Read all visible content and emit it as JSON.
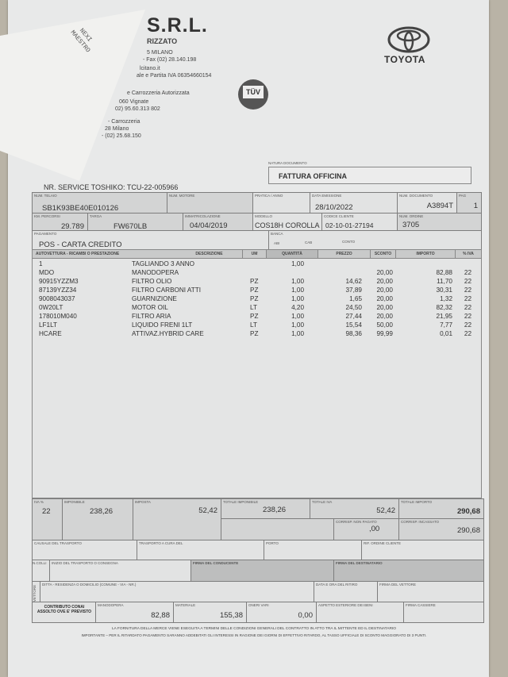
{
  "receipt": {
    "line1": "NEXI",
    "line2": "MAESTRO"
  },
  "company": {
    "name": "S.R.L.",
    "subtitle": "RIZZATO",
    "lines": [
      "5 MILANO",
      "- Fax (02) 28.140.198",
      "lcitano.it",
      "ale e Partita IVA 06354660154",
      "e Carrozzeria Autorizzata",
      "060 Vignate",
      "02) 95.60.313 802",
      "- Carrozzeria",
      "28 Milano",
      "- (02) 25.68.150"
    ]
  },
  "logos": {
    "tuv": "TÜV",
    "toyota": "TOYOTA"
  },
  "document_type": {
    "label": "NATURA DOCUMENTO",
    "value": "FATTURA OFFICINA"
  },
  "service_number": "NR. SERVICE TOSHIKO: TCU-22-005966",
  "info": {
    "num_telaio": {
      "label": "NUM. TELAIO",
      "value": "SB1K93BE40E010126"
    },
    "num_motore": {
      "label": "NUM. MOTORE",
      "value": ""
    },
    "pratica_anno": {
      "label": "PRATICA / ANNO",
      "value": ""
    },
    "data_emissione": {
      "label": "DATA EMISSIONE",
      "value": "28/10/2022"
    },
    "num_documento": {
      "label": "NUM. DOCUMENTO",
      "value": "A3894T"
    },
    "pag": {
      "label": "PAG",
      "value": "1"
    },
    "km_percorsi": {
      "label": "KM. PERCORSI",
      "value": "29.789"
    },
    "targa": {
      "label": "TARGA",
      "value": "FW670LB"
    },
    "immatricolazione": {
      "label": "IMMATRICOLAZIONE",
      "value": "04/04/2019"
    },
    "modello": {
      "label": "MODELLO",
      "value": "COS18H COROLLA"
    },
    "codice_cliente": {
      "label": "CODICE CLIENTE",
      "value": "02-10-01-27194"
    },
    "num_ordine": {
      "label": "NUM. ORDINE",
      "value": "3705"
    },
    "pagamento": {
      "label": "PAGAMENTO",
      "value": "POS - CARTA CREDITO"
    },
    "banca": {
      "label": "BANCA",
      "abi": "ABI",
      "cab": "CAB",
      "conto": "CONTO"
    }
  },
  "table": {
    "headers": {
      "code": "AUTOVETTURA - RICAMBI O PRESTAZIONE",
      "desc": "DESCRIZIONE",
      "um": "UM",
      "qty": "QUANTITÀ",
      "price": "PREZZO",
      "discount": "SCONTO",
      "amount": "IMPORTO",
      "vat": "% IVA"
    },
    "rows": [
      {
        "code": "1",
        "desc": "TAGLIANDO 3 ANNO",
        "um": "",
        "qty": "1,00",
        "price": "",
        "discount": "",
        "amount": "",
        "vat": ""
      },
      {
        "code": "MDO",
        "desc": "MANODOPERA",
        "um": "",
        "qty": "",
        "price": "",
        "discount": "20,00",
        "amount": "82,88",
        "vat": "22"
      },
      {
        "code": "90915YZZM3",
        "desc": "FILTRO OLIO",
        "um": "PZ",
        "qty": "1,00",
        "price": "14,62",
        "discount": "20,00",
        "amount": "11,70",
        "vat": "22"
      },
      {
        "code": "87139YZZ34",
        "desc": "FILTRO CARBONI ATTI",
        "um": "PZ",
        "qty": "1,00",
        "price": "37,89",
        "discount": "20,00",
        "amount": "30,31",
        "vat": "22"
      },
      {
        "code": "9008043037",
        "desc": "GUARNIZIONE",
        "um": "PZ",
        "qty": "1,00",
        "price": "1,65",
        "discount": "20,00",
        "amount": "1,32",
        "vat": "22"
      },
      {
        "code": "0W20LT",
        "desc": "MOTOR OIL",
        "um": "LT",
        "qty": "4,20",
        "price": "24,50",
        "discount": "20,00",
        "amount": "82,32",
        "vat": "22"
      },
      {
        "code": "178010M040",
        "desc": "FILTRO ARIA",
        "um": "PZ",
        "qty": "1,00",
        "price": "27,44",
        "discount": "20,00",
        "amount": "21,95",
        "vat": "22"
      },
      {
        "code": "LF1LT",
        "desc": "LIQUIDO FRENI 1LT",
        "um": "LT",
        "qty": "1,00",
        "price": "15,54",
        "discount": "50,00",
        "amount": "7,77",
        "vat": "22"
      },
      {
        "code": "HCARE",
        "desc": "ATTIVAZ.HYBRID CARE",
        "um": "PZ",
        "qty": "1,00",
        "price": "98,36",
        "discount": "99,99",
        "amount": "0,01",
        "vat": "22"
      }
    ]
  },
  "totals": {
    "iva_pct": {
      "label": "IVA %",
      "value": "22"
    },
    "imponibile": {
      "label": "IMPONIBILE",
      "value": "238,26"
    },
    "imposta": {
      "label": "IMPOSTA",
      "value": "52,42"
    },
    "totale_imponibile": {
      "label": "TOTALE IMPONIBILE",
      "value": "238,26"
    },
    "totale_iva": {
      "label": "TOTALE IVA",
      "value": "52,42"
    },
    "totale_importo": {
      "label": "TOTALE IMPORTO",
      "value": "290,68"
    },
    "corrisp_non_pagato": {
      "label": "CORRISP. NON PAGATO",
      "value": ",00"
    },
    "corrisp_incassato": {
      "label": "CORRISP. INCASSATO",
      "value": "290,68"
    }
  },
  "transport": {
    "causale": "CAUSALE DEL TRASPORTO",
    "a_cura": "TRASPORTO A CURA DEL",
    "porto": "PORTO",
    "rif_ordine": "RIF. ORDINE CLIENTE",
    "n_colli": "N.COLLI",
    "inizio": "INIZIO DEL TRASPORTO O CONSEGNA",
    "firma_conducente": "FIRMA DEL CONDUCENTE",
    "firma_destinatario": "FIRMA DEL DESTINATARIO",
    "vettore": "VETTORE",
    "ditta": "DITTA - RESIDENZA O DOMICILIO (COMUNE - VIA - NR.)",
    "data_ritiro": "DATA E ORA DEL RITIRO",
    "firma_vettore": "FIRMA DEL VETTORE"
  },
  "summary": {
    "contributo": "CONTRIBUTO CONAI ASSOLTO OVE E' PREVISTO",
    "manodopera": {
      "label": "MANODOPERA",
      "value": "82,88"
    },
    "materiale": {
      "label": "MATERIALE",
      "value": "155,38"
    },
    "oneri_vari": {
      "label": "ONERI VARI",
      "value": "0,00"
    },
    "aspetto": "ASPETTO ESTERIORE DEI BENI",
    "firma_cassiere": "FIRMA CASSIERE"
  },
  "footer": {
    "line1": "LA FORNITURA DELLA MERCE VIENE ESEGUITA A TERMINI DELLE CONDIZIONI GENERALI DEL CONTRATTO IN ATTO TRA IL MITTENTE ED IL DESTINATARIO",
    "line2": "IMPORTANTE – PER IL RITARDATO PAGAMENTO SARANNO ADDEBITATI GLI INTERESSI IN RAGIONE DEI GIORNI DI EFFETTIVO RITARDO, AL TASSO UFFICIALE DI SCONTO MAGGIORATO DI 3 PUNTI."
  }
}
